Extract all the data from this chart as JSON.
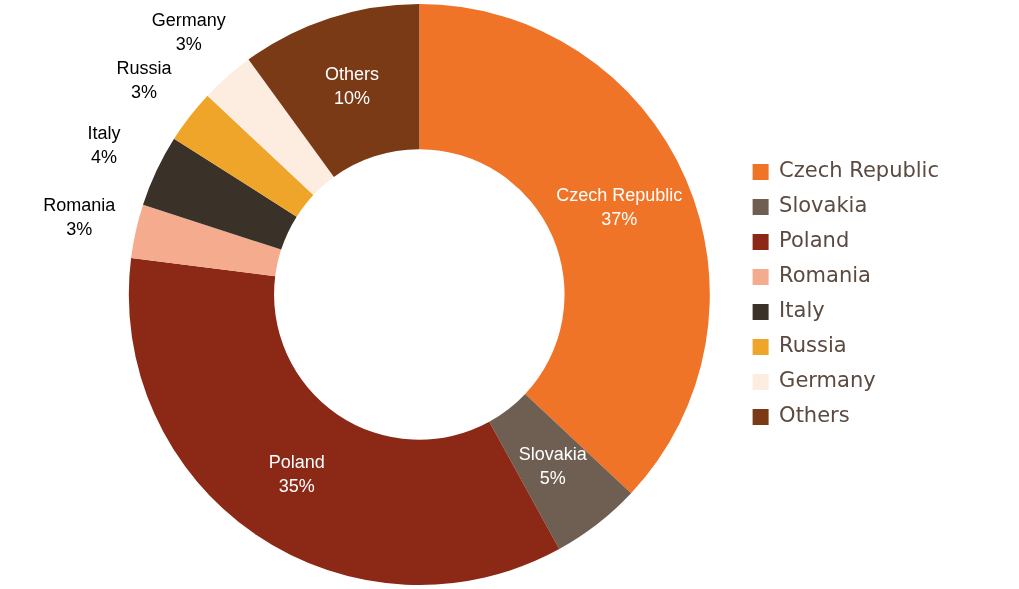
{
  "chart_data": {
    "type": "donut",
    "categories": [
      "Czech Republic",
      "Slovakia",
      "Poland",
      "Romania",
      "Italy",
      "Russia",
      "Germany",
      "Others"
    ],
    "values": [
      37,
      5,
      35,
      3,
      4,
      3,
      3,
      10
    ],
    "value_labels": [
      "37%",
      "5%",
      "35%",
      "3%",
      "4%",
      "3%",
      "3%",
      "10%"
    ],
    "colors": [
      "#f07428",
      "#6f5e52",
      "#8b2816",
      "#f5ac8e",
      "#3a3128",
      "#eea529",
      "#fdece0",
      "#7b3a16"
    ],
    "legend": "right"
  }
}
